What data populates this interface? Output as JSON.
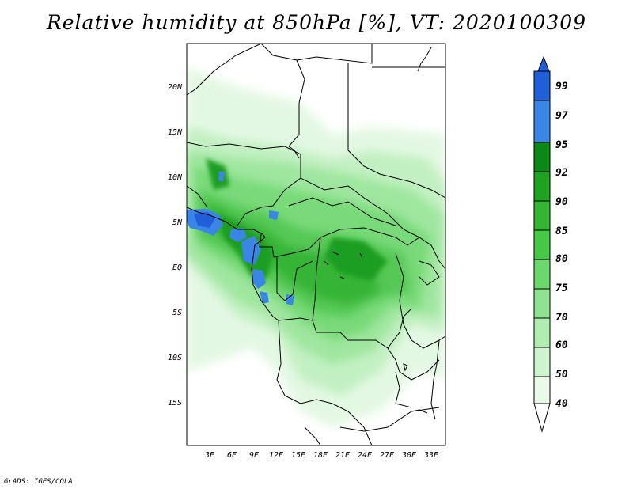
{
  "title": "Relative humidity at 850hPa [%], VT: 2020100309",
  "credit": "GrADS: IGES/COLA",
  "map": {
    "lon_ticks": [
      "3E",
      "6E",
      "9E",
      "12E",
      "15E",
      "18E",
      "21E",
      "24E",
      "27E",
      "30E",
      "33E"
    ],
    "lat_ticks": [
      "20N",
      "15N",
      "10N",
      "5N",
      "EQ",
      "5S",
      "10S",
      "15S"
    ]
  },
  "colorbar": {
    "labels": [
      "99",
      "97",
      "95",
      "92",
      "90",
      "85",
      "80",
      "75",
      "70",
      "60",
      "50",
      "40"
    ],
    "colors": [
      "#1f5fd8",
      "#3a86e6",
      "#5eaaf0",
      "#0a8a14",
      "#1ea320",
      "#33b633",
      "#45c845",
      "#6ad86a",
      "#8ee48e",
      "#b0eeb0",
      "#cdf5cd",
      "#e8fbe8",
      "#ffffff"
    ]
  }
}
